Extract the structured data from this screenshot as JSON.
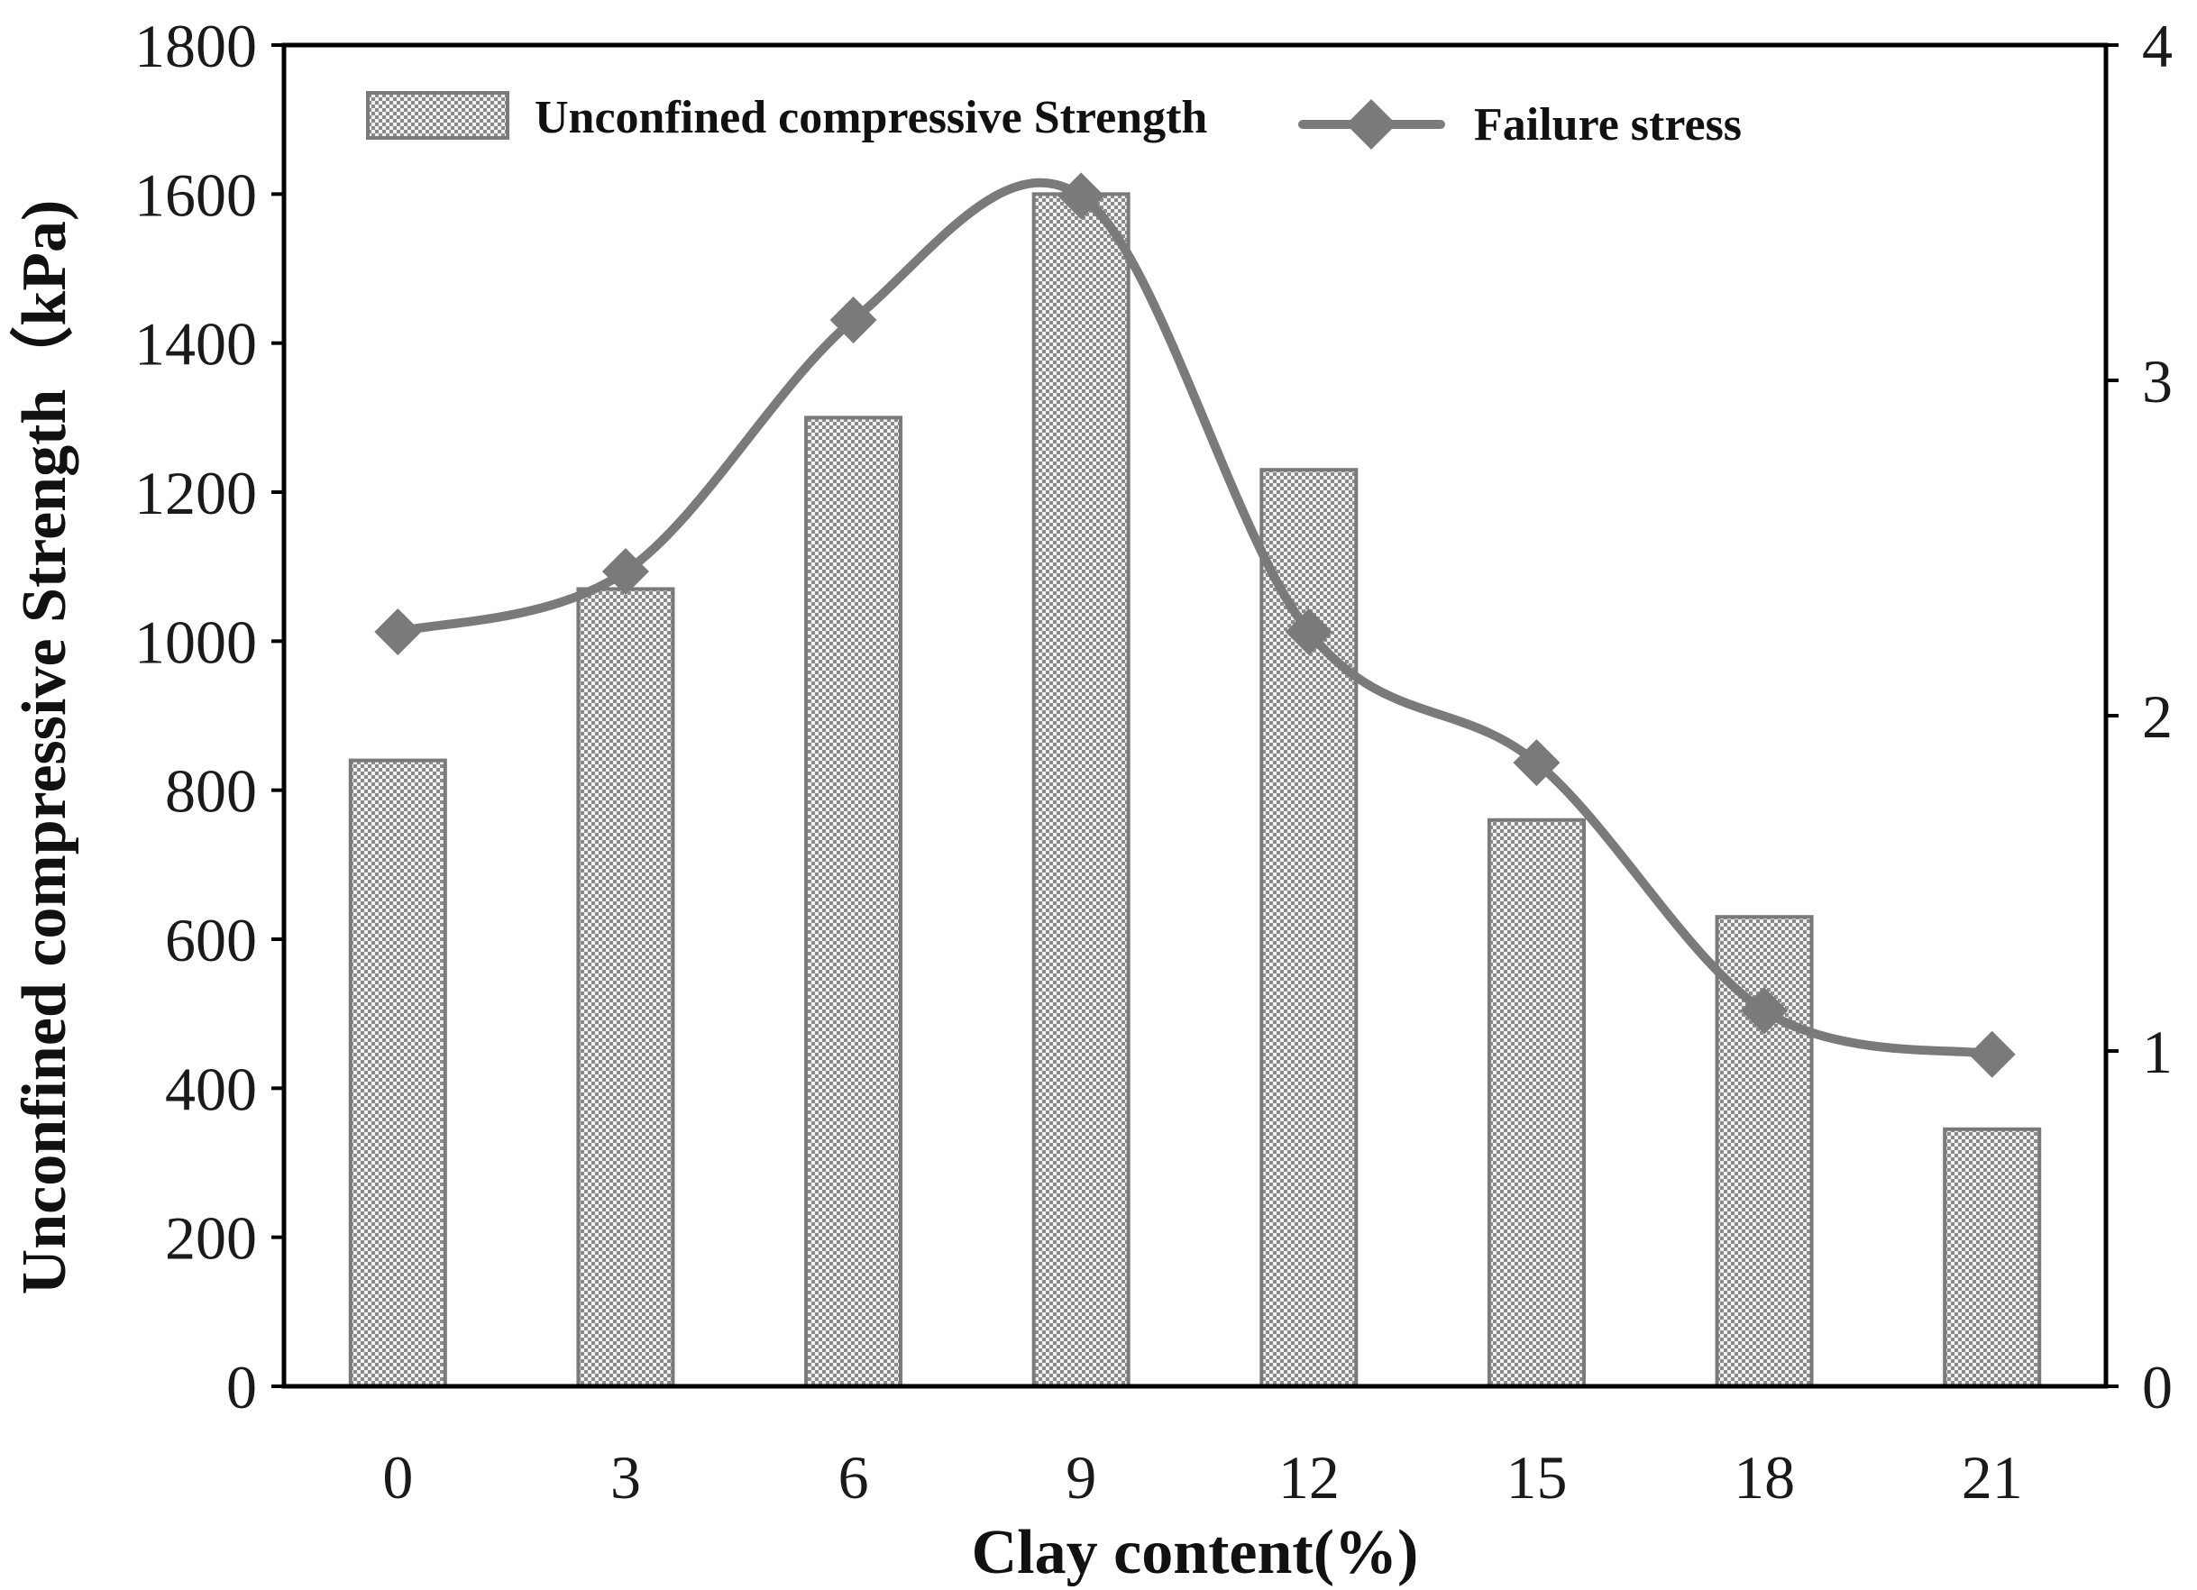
{
  "chart_data": {
    "type": "bar",
    "categories": [
      "0",
      "3",
      "6",
      "9",
      "12",
      "15",
      "18",
      "21"
    ],
    "xlabel": "Clay content(%)",
    "ylabel": "Unconfined compressive Strength（kPa)",
    "y2label": "",
    "ylim": [
      0,
      1800
    ],
    "y2lim": [
      0,
      4
    ],
    "yticks": [
      "0",
      "200",
      "400",
      "600",
      "800",
      "1000",
      "1200",
      "1400",
      "1600",
      "1800"
    ],
    "y2ticks": [
      "0",
      "1",
      "2",
      "3",
      "4"
    ],
    "grid": false,
    "legend_position": "top",
    "series": [
      {
        "name": "Unconfined compressive Strength",
        "type": "bar",
        "axis": "left",
        "values": [
          840,
          1070,
          1300,
          1600,
          1230,
          760,
          630,
          345
        ],
        "color": "#a8a8a8",
        "pattern": "dotted"
      },
      {
        "name": "Failure stress",
        "type": "line",
        "axis": "right",
        "smooth": true,
        "marker": "diamond",
        "values": [
          2.25,
          2.43,
          3.18,
          3.55,
          2.25,
          1.86,
          1.12,
          0.99
        ],
        "color": "#7a7a7a"
      }
    ]
  }
}
